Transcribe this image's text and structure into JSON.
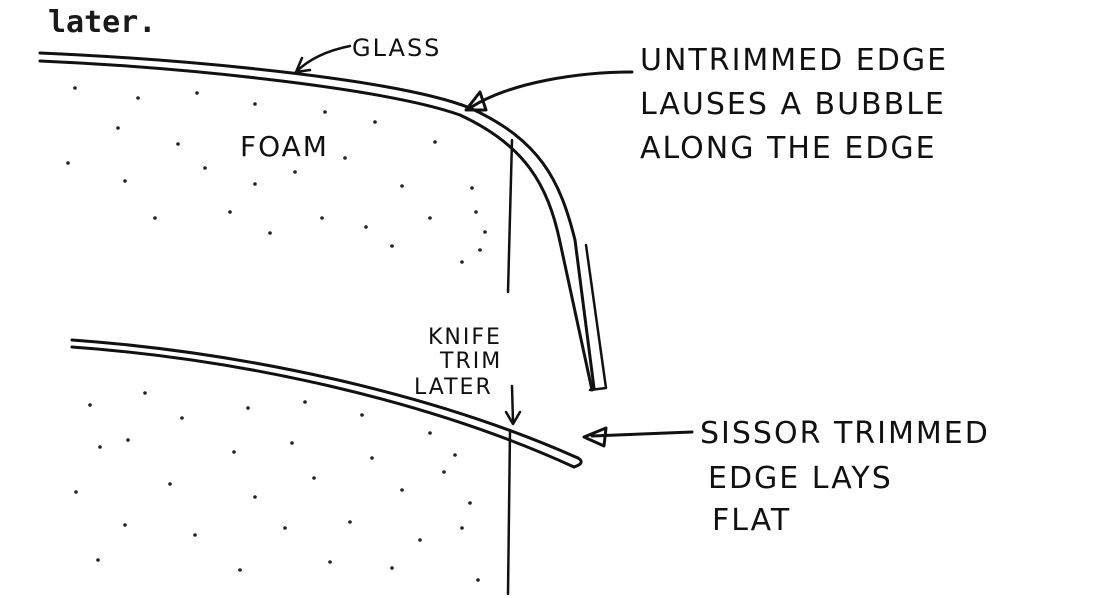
{
  "caption_fragment": "later.",
  "labels": {
    "glass": "GLASS",
    "foam": "FOAM",
    "untrimmed": [
      "UNTRIMMED EDGE",
      "LAUSES A BUBBLE",
      "ALONG THE EDGE"
    ],
    "knife": [
      "KNIFE",
      "TRIM",
      "LATER"
    ],
    "sissor": [
      "SISSOR TRIMMED",
      "EDGE LAYS",
      "FLAT"
    ]
  },
  "colors": {
    "ink": "#111111",
    "paper": "#ffffff"
  }
}
